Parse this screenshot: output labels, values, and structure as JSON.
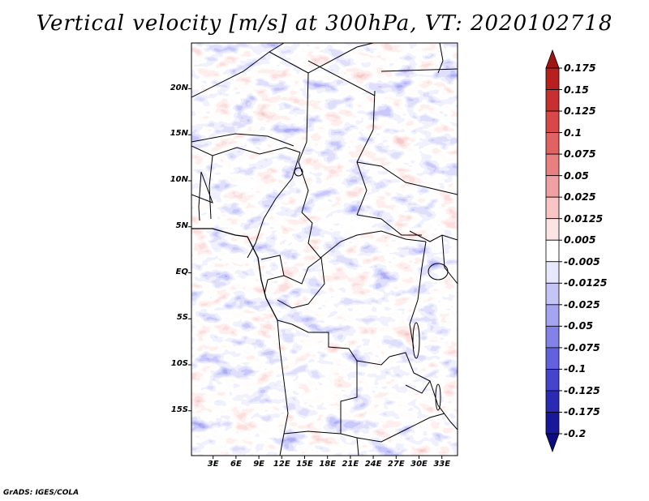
{
  "title": "Vertical velocity [m/s] at 300hPa, VT: 2020102718",
  "credit": "GrADS: IGES/COLA",
  "map": {
    "variable": "Vertical velocity",
    "units": "m/s",
    "level": "300hPa",
    "valid_time": "2020102718",
    "lat_range": [
      -20,
      24
    ],
    "lon_range": [
      0,
      35
    ],
    "lat_labels": [
      {
        "lat": 20,
        "label": "20N"
      },
      {
        "lat": 15,
        "label": "15N"
      },
      {
        "lat": 10,
        "label": "10N"
      },
      {
        "lat": 5,
        "label": "5N"
      },
      {
        "lat": 0,
        "label": "EQ"
      },
      {
        "lat": -5,
        "label": "5S"
      },
      {
        "lat": -10,
        "label": "10S"
      },
      {
        "lat": -15,
        "label": "15S"
      }
    ],
    "lon_labels": [
      {
        "lon": 3,
        "label": "3E"
      },
      {
        "lon": 6,
        "label": "6E"
      },
      {
        "lon": 9,
        "label": "9E"
      },
      {
        "lon": 12,
        "label": "12E"
      },
      {
        "lon": 15,
        "label": "15E"
      },
      {
        "lon": 18,
        "label": "18E"
      },
      {
        "lon": 21,
        "label": "21E"
      },
      {
        "lon": 24,
        "label": "24E"
      },
      {
        "lon": 27,
        "label": "27E"
      },
      {
        "lon": 30,
        "label": "30E"
      },
      {
        "lon": 33,
        "label": "33E"
      }
    ]
  },
  "colorbar": {
    "labels": [
      "0.175",
      "0.15",
      "0.125",
      "0.1",
      "0.075",
      "0.05",
      "0.025",
      "0.0125",
      "0.005",
      "-0.005",
      "-0.0125",
      "-0.025",
      "-0.05",
      "-0.075",
      "-0.1",
      "-0.125",
      "-0.175",
      "-0.2"
    ],
    "colors": [
      "#a01414",
      "#b82020",
      "#c83030",
      "#d84848",
      "#e06262",
      "#e88080",
      "#f0a0a0",
      "#f8c4c4",
      "#fde4e4",
      "#ffffff",
      "#e8e8fc",
      "#c4c4f6",
      "#a4a4f0",
      "#8282e8",
      "#6262de",
      "#4444cc",
      "#2a2ab4",
      "#18189a",
      "#0c0c80"
    ]
  }
}
